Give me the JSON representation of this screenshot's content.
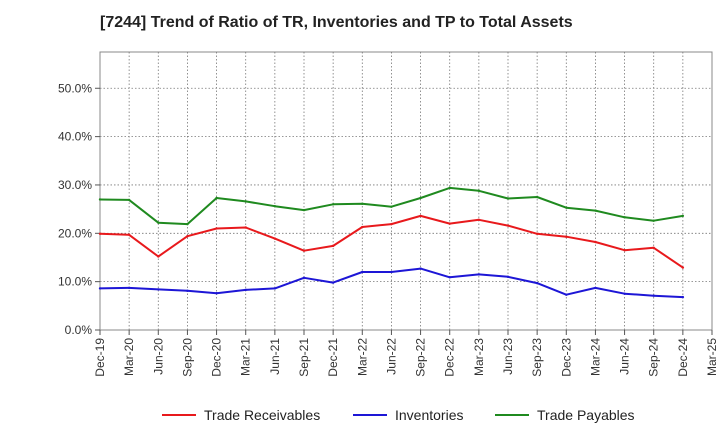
{
  "title": "[7244]  Trend of Ratio of TR, Inventories and TP to Total Assets",
  "chart_data": {
    "type": "line",
    "ylim": [
      0,
      57.5
    ],
    "yticks": [
      0,
      10,
      20,
      30,
      40,
      50
    ],
    "ytick_labels": [
      "0.0%",
      "10.0%",
      "20.0%",
      "30.0%",
      "40.0%",
      "50.0%"
    ],
    "x": [
      "Dec-19",
      "Mar-20",
      "Jun-20",
      "Sep-20",
      "Dec-20",
      "Mar-21",
      "Jun-21",
      "Sep-21",
      "Dec-21",
      "Mar-22",
      "Jun-22",
      "Sep-22",
      "Dec-22",
      "Mar-23",
      "Jun-23",
      "Sep-23",
      "Dec-23",
      "Mar-24",
      "Jun-24",
      "Sep-24",
      "Dec-24",
      "Mar-25"
    ],
    "xtick_labels": [
      "Dec-19",
      "Mar-20",
      "Jun-20",
      "Sep-20",
      "Dec-20",
      "Mar-21",
      "Jun-21",
      "Sep-21",
      "Dec-21",
      "Mar-22",
      "Jun-22",
      "Sep-22",
      "Dec-22",
      "Mar-23",
      "Jun-23",
      "Sep-23",
      "Dec-23",
      "Mar-24",
      "Jun-24",
      "Sep-24",
      "Dec-24",
      "Mar-25"
    ],
    "grid": true,
    "legend_position": "bottom",
    "series": [
      {
        "name": "Trade Receivables",
        "color": "#e8191c",
        "values": [
          19.9,
          19.7,
          15.2,
          19.4,
          21.0,
          21.2,
          18.9,
          16.4,
          17.4,
          21.3,
          21.9,
          23.6,
          22.0,
          22.8,
          21.6,
          19.9,
          19.3,
          18.2,
          16.5,
          17.0,
          12.9,
          null
        ]
      },
      {
        "name": "Inventories",
        "color": "#1d16d6",
        "values": [
          8.6,
          8.7,
          8.4,
          8.1,
          7.6,
          8.3,
          8.6,
          10.8,
          9.8,
          12.0,
          12.0,
          12.7,
          10.9,
          11.5,
          11.0,
          9.7,
          7.3,
          8.7,
          7.5,
          7.1,
          6.8,
          null
        ]
      },
      {
        "name": "Trade Payables",
        "color": "#1f8a1f",
        "values": [
          27.0,
          26.9,
          22.2,
          21.9,
          27.3,
          26.6,
          25.6,
          24.8,
          26.0,
          26.1,
          25.5,
          27.3,
          29.4,
          28.8,
          27.2,
          27.5,
          25.3,
          24.7,
          23.3,
          22.6,
          23.6,
          null
        ]
      }
    ]
  }
}
